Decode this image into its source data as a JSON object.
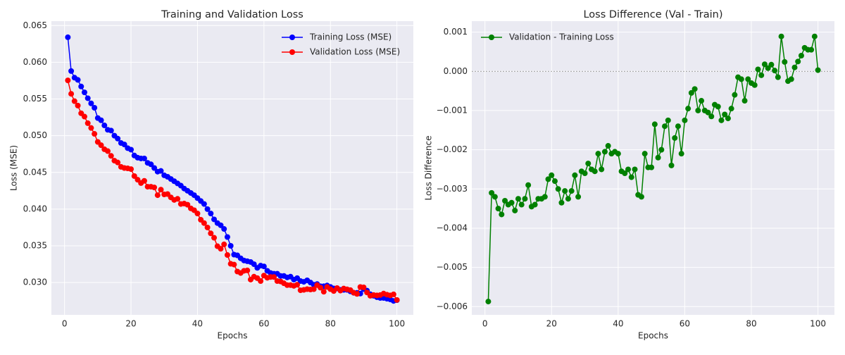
{
  "chart_data": [
    {
      "type": "line",
      "title": "Training and Validation Loss",
      "xlabel": "Epochs",
      "ylabel": "Loss (MSE)",
      "x": [
        1,
        2,
        3,
        4,
        5,
        6,
        7,
        8,
        9,
        10,
        11,
        12,
        13,
        14,
        15,
        16,
        17,
        18,
        19,
        20,
        21,
        22,
        23,
        24,
        25,
        26,
        27,
        28,
        29,
        30,
        31,
        32,
        33,
        34,
        35,
        36,
        37,
        38,
        39,
        40,
        41,
        42,
        43,
        44,
        45,
        46,
        47,
        48,
        49,
        50,
        51,
        52,
        53,
        54,
        55,
        56,
        57,
        58,
        59,
        60,
        61,
        62,
        63,
        64,
        65,
        66,
        67,
        68,
        69,
        70,
        71,
        72,
        73,
        74,
        75,
        76,
        77,
        78,
        79,
        80,
        81,
        82,
        83,
        84,
        85,
        86,
        87,
        88,
        89,
        90,
        91,
        92,
        93,
        94,
        95,
        96,
        97,
        98,
        99,
        100
      ],
      "series": [
        {
          "name": "Training Loss (MSE)",
          "color": "#0000ff",
          "values": [
            0.0634,
            0.0588,
            0.0579,
            0.0576,
            0.0567,
            0.0559,
            0.0551,
            0.0544,
            0.0538,
            0.0524,
            0.0521,
            0.0514,
            0.0508,
            0.0507,
            0.05,
            0.0496,
            0.049,
            0.0488,
            0.0483,
            0.0481,
            0.0473,
            0.047,
            0.0469,
            0.0469,
            0.0463,
            0.0461,
            0.0456,
            0.0451,
            0.0452,
            0.0446,
            0.0444,
            0.0441,
            0.0438,
            0.0435,
            0.0432,
            0.0428,
            0.0425,
            0.0422,
            0.0419,
            0.0415,
            0.0411,
            0.0407,
            0.04,
            0.0394,
            0.0386,
            0.0381,
            0.0378,
            0.0373,
            0.0362,
            0.035,
            0.0338,
            0.0337,
            0.0333,
            0.033,
            0.0329,
            0.0328,
            0.0325,
            0.032,
            0.0323,
            0.0322,
            0.0316,
            0.0313,
            0.0312,
            0.0312,
            0.0309,
            0.0309,
            0.0307,
            0.0308,
            0.0304,
            0.0306,
            0.0302,
            0.0301,
            0.0303,
            0.03,
            0.0297,
            0.0298,
            0.0295,
            0.0295,
            0.0296,
            0.0294,
            0.0292,
            0.0292,
            0.029,
            0.029,
            0.029,
            0.0288,
            0.0286,
            0.0286,
            0.0285,
            0.0291,
            0.0289,
            0.0284,
            0.0282,
            0.028,
            0.0279,
            0.0279,
            0.0278,
            0.0277,
            0.0275,
            0.0276
          ]
        },
        {
          "name": "Validation Loss (MSE)",
          "color": "#ff0000",
          "values": [
            0.05753,
            0.0557,
            0.0547,
            0.0541,
            0.05305,
            0.0526,
            0.0517,
            0.05105,
            0.05025,
            0.04915,
            0.0487,
            0.04815,
            0.0479,
            0.04725,
            0.0466,
            0.04635,
            0.04575,
            0.0456,
            0.04555,
            0.04545,
            0.0445,
            0.044,
            0.04355,
            0.04385,
            0.04305,
            0.04305,
            0.04295,
            0.0419,
            0.04265,
            0.042,
            0.04205,
            0.0416,
            0.04125,
            0.0414,
            0.0407,
            0.04075,
            0.0406,
            0.0401,
            0.03985,
            0.0394,
            0.03855,
            0.0381,
            0.0375,
            0.0367,
            0.0361,
            0.03495,
            0.0346,
            0.0352,
            0.03375,
            0.03255,
            0.03245,
            0.0315,
            0.0313,
            0.0316,
            0.03165,
            0.0304,
            0.0308,
            0.0306,
            0.0302,
            0.03095,
            0.03065,
            0.03075,
            0.03075,
            0.0302,
            0.03015,
            0.0299,
            0.02965,
            0.02965,
            0.02955,
            0.0297,
            0.02895,
            0.029,
            0.0291,
            0.02905,
            0.0291,
            0.02965,
            0.0293,
            0.02875,
            0.0294,
            0.0291,
            0.02885,
            0.02925,
            0.0289,
            0.02918,
            0.02908,
            0.02897,
            0.02862,
            0.02845,
            0.02939,
            0.02934,
            0.02865,
            0.0282,
            0.0283,
            0.02825,
            0.0283,
            0.0285,
            0.02835,
            0.02825,
            0.02839,
            0.02763
          ]
        }
      ],
      "xlim": [
        -3.95,
        104.95
      ],
      "xticks": [
        0,
        20,
        40,
        60,
        80,
        100
      ],
      "ylim": [
        0.0256,
        0.0656
      ],
      "yticks": [
        {
          "value": 0.03,
          "label": "0.030"
        },
        0.035,
        {
          "value": 0.04,
          "label": "0.040"
        },
        0.045,
        {
          "value": 0.05,
          "label": "0.050"
        },
        0.055,
        {
          "value": 0.06,
          "label": "0.060"
        },
        0.065
      ],
      "grid": true,
      "legend": "upper right"
    },
    {
      "type": "line",
      "title": "Loss Difference (Val - Train)",
      "xlabel": "Epochs",
      "ylabel": "Loss Difference",
      "x": [
        1,
        2,
        3,
        4,
        5,
        6,
        7,
        8,
        9,
        10,
        11,
        12,
        13,
        14,
        15,
        16,
        17,
        18,
        19,
        20,
        21,
        22,
        23,
        24,
        25,
        26,
        27,
        28,
        29,
        30,
        31,
        32,
        33,
        34,
        35,
        36,
        37,
        38,
        39,
        40,
        41,
        42,
        43,
        44,
        45,
        46,
        47,
        48,
        49,
        50,
        51,
        52,
        53,
        54,
        55,
        56,
        57,
        58,
        59,
        60,
        61,
        62,
        63,
        64,
        65,
        66,
        67,
        68,
        69,
        70,
        71,
        72,
        73,
        74,
        75,
        76,
        77,
        78,
        79,
        80,
        81,
        82,
        83,
        84,
        85,
        86,
        87,
        88,
        89,
        90,
        91,
        92,
        93,
        94,
        95,
        96,
        97,
        98,
        99,
        100
      ],
      "series": [
        {
          "name": "Validation - Training Loss",
          "color": "#008000",
          "values": [
            -0.00587,
            -0.0031,
            -0.0032,
            -0.0035,
            -0.00365,
            -0.0033,
            -0.0034,
            -0.00335,
            -0.00355,
            -0.00325,
            -0.0034,
            -0.00325,
            -0.0029,
            -0.00345,
            -0.0034,
            -0.00325,
            -0.00325,
            -0.0032,
            -0.00275,
            -0.00265,
            -0.0028,
            -0.003,
            -0.00335,
            -0.00305,
            -0.00325,
            -0.00305,
            -0.00265,
            -0.0032,
            -0.00255,
            -0.0026,
            -0.00235,
            -0.0025,
            -0.00255,
            -0.0021,
            -0.0025,
            -0.00205,
            -0.0019,
            -0.0021,
            -0.00205,
            -0.0021,
            -0.00255,
            -0.0026,
            -0.0025,
            -0.0027,
            -0.0025,
            -0.00315,
            -0.0032,
            -0.0021,
            -0.00245,
            -0.00245,
            -0.00135,
            -0.0022,
            -0.002,
            -0.0014,
            -0.00125,
            -0.0024,
            -0.0017,
            -0.0014,
            -0.0021,
            -0.00125,
            -0.00095,
            -0.00055,
            -0.00045,
            -0.001,
            -0.00075,
            -0.001,
            -0.00105,
            -0.00115,
            -0.00085,
            -0.0009,
            -0.00125,
            -0.0011,
            -0.0012,
            -0.00095,
            -0.0006,
            -0.00015,
            -0.0002,
            -0.00075,
            -0.0002,
            -0.0003,
            -0.00035,
            5e-05,
            -0.0001,
            0.00018,
            8e-05,
            0.00017,
            2e-05,
            -0.00015,
            0.00089,
            0.00024,
            -0.00025,
            -0.0002,
            0.0001,
            0.00025,
            0.0004,
            0.0006,
            0.00055,
            0.00055,
            0.00089,
            3e-05
          ]
        }
      ],
      "xlim": [
        -3.95,
        104.95
      ],
      "xticks": [
        0,
        20,
        40,
        60,
        80,
        100
      ],
      "ylim": [
        -0.00621,
        0.00128
      ],
      "yticks": [
        {
          "value": -0.006,
          "label": "−0.006"
        },
        {
          "value": -0.005,
          "label": "−0.005"
        },
        {
          "value": -0.004,
          "label": "−0.004"
        },
        {
          "value": -0.003,
          "label": "−0.003"
        },
        {
          "value": -0.002,
          "label": "−0.002"
        },
        {
          "value": -0.001,
          "label": "−0.001"
        },
        {
          "value": 0,
          "label": "0.000"
        },
        0.001
      ],
      "reference_line": 0,
      "grid": true,
      "legend": "upper left"
    }
  ]
}
